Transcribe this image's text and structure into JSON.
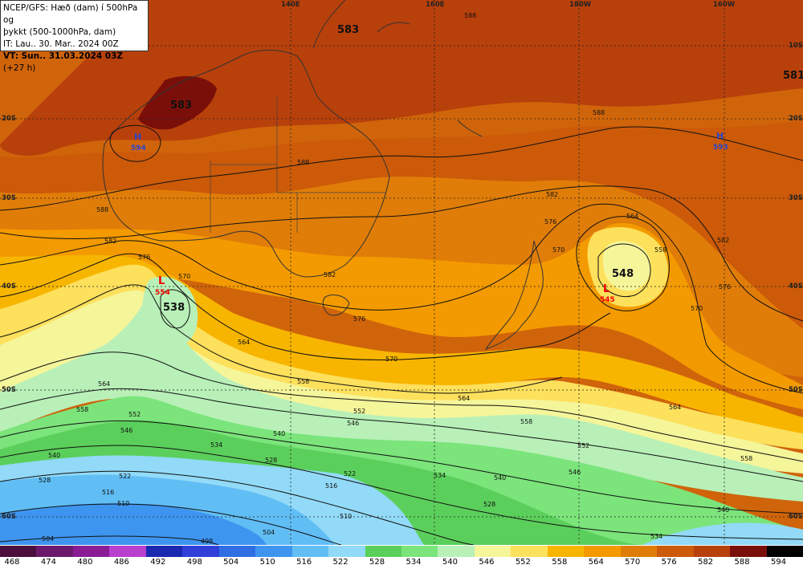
{
  "header": {
    "line1": "NCEP/GFS: Hæð (dam) í 500hPa og",
    "line2": "þykkt (500-1000hPa, dam)",
    "line3": "IT: Lau.. 30. Mar.. 2024 00Z",
    "line4": "VT: Sun.. 31.03.2024 03Z",
    "line4_suffix": "(+27 h)"
  },
  "lon_labels": [
    "140E",
    "160E",
    "180W",
    "160W"
  ],
  "lat_labels": [
    "10S",
    "20S",
    "30S",
    "40S",
    "50S",
    "60S"
  ],
  "contour_labels": {
    "c583a": "583",
    "c583b": "583",
    "c581": "581",
    "c588": "588",
    "c588b": "588",
    "c588c": "588",
    "c582a": "582",
    "c582b": "582",
    "c582c": "582",
    "c582d": "582",
    "c576a": "576",
    "c576b": "576",
    "c576c": "576",
    "c576d": "576",
    "c570a": "570",
    "c570b": "570",
    "c570c": "570",
    "c570d": "570",
    "c564a": "564",
    "c564b": "564",
    "c564c": "564",
    "c564d": "564",
    "c564e": "564",
    "c558a": "558",
    "c558b": "558",
    "c558c": "558",
    "c558d": "558",
    "c552a": "552",
    "c552b": "552",
    "c552c": "552",
    "c546a": "546",
    "c546b": "546",
    "c546c": "546",
    "c540a": "540",
    "c540b": "540",
    "c540c": "540",
    "c540d": "540",
    "c534a": "534",
    "c534b": "534",
    "c534c": "534",
    "c528a": "528",
    "c528b": "528",
    "c528c": "528",
    "c522a": "522",
    "c522b": "522",
    "c516a": "516",
    "c516b": "516",
    "c510a": "510",
    "c510b": "510",
    "c504a": "504",
    "c504b": "504",
    "c498": "498",
    "c538": "538",
    "c548": "548",
    "c558e": "558"
  },
  "systems": [
    {
      "type": "H",
      "value": "594",
      "name": "high-west-australia"
    },
    {
      "type": "H",
      "value": "593",
      "name": "high-central-pacific"
    },
    {
      "type": "L",
      "value": "554",
      "name": "low-southern-ocean"
    },
    {
      "type": "L",
      "value": "545",
      "name": "low-east-nz"
    }
  ],
  "colors": {
    "t468": "#4a0f3c",
    "t474": "#6b1a6b",
    "t480": "#8a1d95",
    "t486": "#b93fcf",
    "t492": "#1b28b0",
    "t498": "#2f3fd8",
    "t504": "#2f6fe3",
    "t510": "#3e95ef",
    "t516": "#61bef5",
    "t522": "#92daf7",
    "t528": "#5bcf5b",
    "t534": "#7be47b",
    "t540": "#b8f0b8",
    "t546": "#f5f59a",
    "t552": "#fde05c",
    "t558": "#f7b500",
    "t564": "#f39a00",
    "t570": "#e07d08",
    "t576": "#cc5a09",
    "t582": "#b8400b",
    "t588": "#7a0f0a",
    "t594": "#000000"
  },
  "legend": [
    "468",
    "474",
    "480",
    "486",
    "492",
    "498",
    "504",
    "510",
    "516",
    "522",
    "528",
    "534",
    "540",
    "546",
    "552",
    "558",
    "564",
    "570",
    "576",
    "582",
    "588",
    "594"
  ]
}
